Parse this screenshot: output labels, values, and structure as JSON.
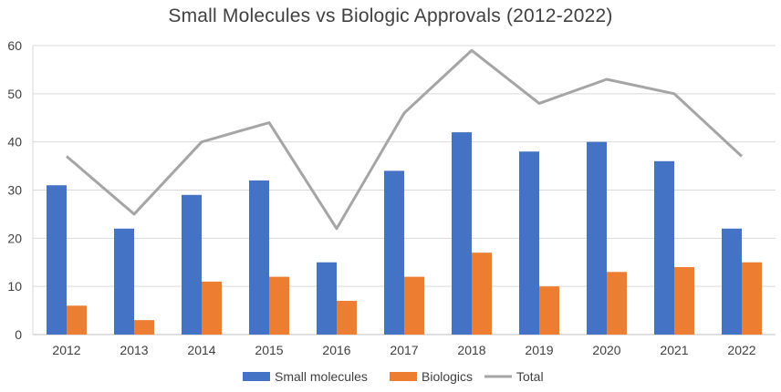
{
  "chart_data": {
    "type": "bar",
    "title": "Small Molecules vs Biologic Approvals (2012-2022)",
    "xlabel": "",
    "ylabel": "",
    "categories": [
      "2012",
      "2013",
      "2014",
      "2015",
      "2016",
      "2017",
      "2018",
      "2019",
      "2020",
      "2021",
      "2022"
    ],
    "series": [
      {
        "name": "Small molecules",
        "type": "bar",
        "color": "#4472c4",
        "values": [
          31,
          22,
          29,
          32,
          15,
          34,
          42,
          38,
          40,
          36,
          22
        ]
      },
      {
        "name": "Biologics",
        "type": "bar",
        "color": "#ed7d31",
        "values": [
          6,
          3,
          11,
          12,
          7,
          12,
          17,
          10,
          13,
          14,
          15
        ]
      },
      {
        "name": "Total",
        "type": "line",
        "color": "#a5a5a5",
        "values": [
          37,
          25,
          40,
          44,
          22,
          46,
          59,
          48,
          53,
          50,
          37
        ]
      }
    ],
    "ylim": [
      0,
      60
    ],
    "yticks": [
      0,
      10,
      20,
      30,
      40,
      50,
      60
    ],
    "grid": true,
    "legend_position": "bottom"
  }
}
